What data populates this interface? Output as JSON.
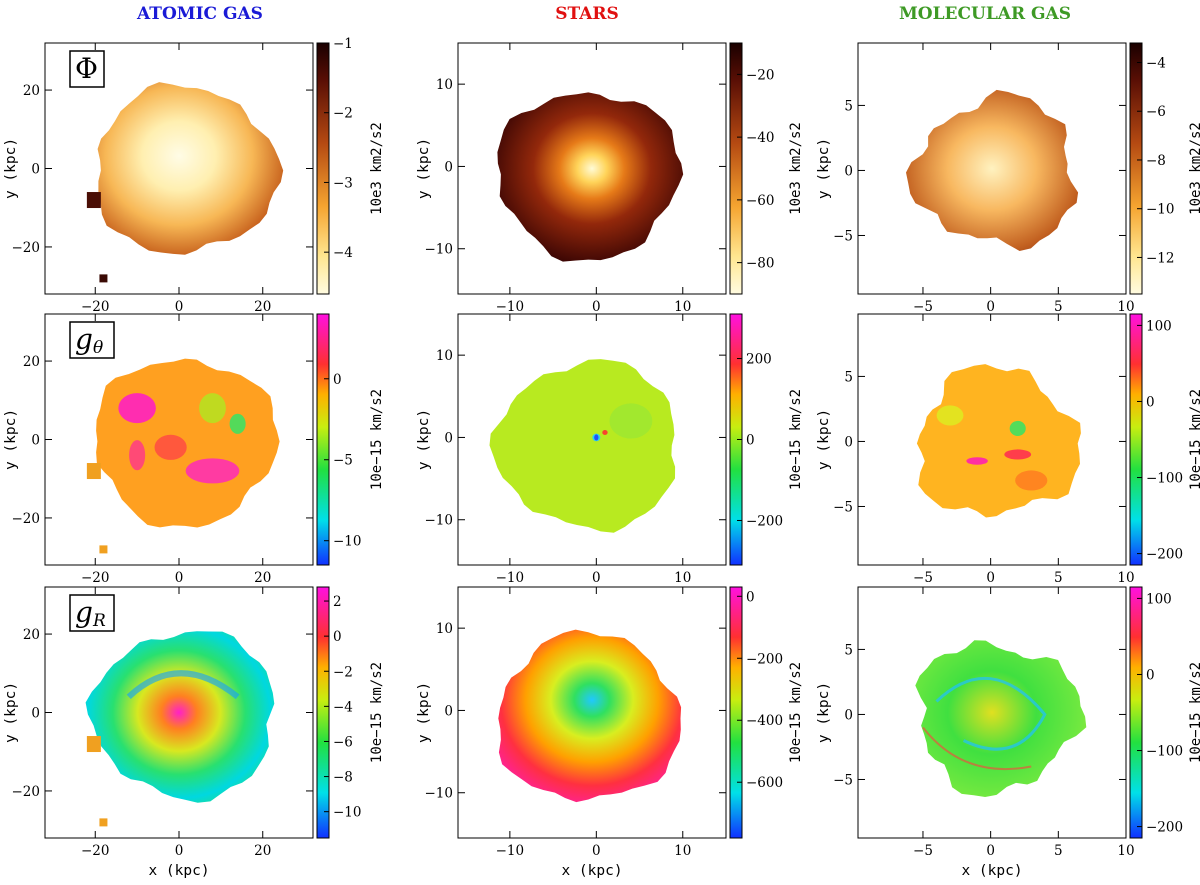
{
  "chart_data": {
    "type": "heatmap",
    "columns": [
      {
        "title": "ATOMIC GAS",
        "color": "#1a1ad6",
        "xlim": [
          -32,
          32
        ],
        "ylim": [
          -32,
          32
        ],
        "ticks": [
          -20,
          0,
          20
        ],
        "tick_labels": [
          "−20",
          "0",
          "20"
        ]
      },
      {
        "title": "STARS",
        "color": "#e01010",
        "xlim": [
          -16,
          15
        ],
        "ylim": [
          -15.5,
          15
        ],
        "ticks": [
          -10,
          0,
          10
        ],
        "tick_labels": [
          "−10",
          "0",
          "10"
        ]
      },
      {
        "title": "MOLECULAR GAS",
        "color": "#3e9a25",
        "xlim": [
          -9.8,
          10
        ],
        "ylim": [
          -9.5,
          9.8
        ],
        "ticks": [
          -5,
          0,
          5,
          10
        ],
        "tick_labels": [
          "−5",
          "0",
          "5",
          "10"
        ]
      }
    ],
    "xlabel": "x (kpc)",
    "ylabel": "y (kpc)",
    "rows": [
      {
        "quantity": "Φ",
        "quantity_sub": "",
        "unit": "10e3 km2/s2",
        "colormap": "heat",
        "colorbars": [
          {
            "range": [
              -4.6,
              -1
            ],
            "ticks": [
              -1,
              -2,
              -3,
              -4
            ],
            "tick_labels": [
              "−1",
              "−2",
              "−3",
              "−4"
            ]
          },
          {
            "range": [
              -90,
              -10
            ],
            "ticks": [
              -20,
              -40,
              -60,
              -80
            ],
            "tick_labels": [
              "−20",
              "−40",
              "−60",
              "−80"
            ]
          },
          {
            "range": [
              -13.5,
              -3.2
            ],
            "ticks": [
              -4,
              -6,
              -8,
              -10,
              -12
            ],
            "tick_labels": [
              "−4",
              "−6",
              "−8",
              "−10",
              "−12"
            ]
          }
        ]
      },
      {
        "quantity": "g",
        "quantity_sub": "θ",
        "unit": "10e−15 km/s2",
        "colormap": "rainbow",
        "colorbars": [
          {
            "range": [
              -11.5,
              4
            ],
            "ticks": [
              0,
              -5,
              -10
            ],
            "tick_labels": [
              "0",
              "−5",
              "−10"
            ]
          },
          {
            "range": [
              -310,
              310
            ],
            "ticks": [
              200,
              0,
              -200
            ],
            "tick_labels": [
              "200",
              "0",
              "−200"
            ]
          },
          {
            "range": [
              -215,
              115
            ],
            "ticks": [
              100,
              0,
              -100,
              -200
            ],
            "tick_labels": [
              "100",
              "0",
              "−100",
              "−200"
            ]
          }
        ]
      },
      {
        "quantity": "g",
        "quantity_sub": "R",
        "unit": "10e−15 km/s2",
        "colormap": "rainbow",
        "colorbars": [
          {
            "range": [
              -11.5,
              2.8
            ],
            "ticks": [
              2,
              0,
              -2,
              -4,
              -6,
              -8,
              -10
            ],
            "tick_labels": [
              "2",
              "0",
              "−2",
              "−4",
              "−6",
              "−8",
              "−10"
            ]
          },
          {
            "range": [
              -780,
              30
            ],
            "ticks": [
              0,
              -200,
              -400,
              -600
            ],
            "tick_labels": [
              "0",
              "−200",
              "−400",
              "−600"
            ]
          },
          {
            "range": [
              -215,
              115
            ],
            "ticks": [
              100,
              0,
              -100,
              -200
            ],
            "tick_labels": [
              "100",
              "0",
              "−100",
              "−200"
            ]
          }
        ]
      }
    ]
  }
}
